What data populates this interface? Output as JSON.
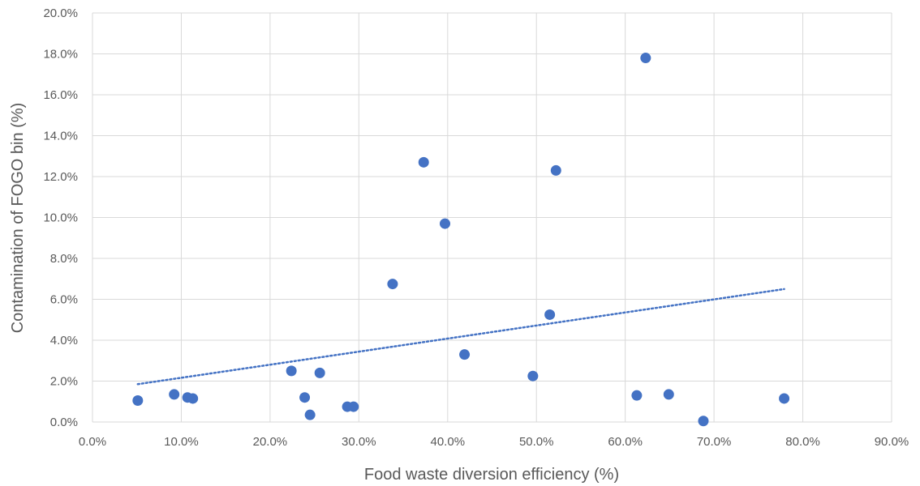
{
  "chart_data": {
    "type": "scatter",
    "title": "",
    "xlabel": "Food waste diversion efficiency (%)",
    "ylabel": "Contamination of FOGO bin (%)",
    "xlim": [
      0,
      90
    ],
    "ylim": [
      0,
      20
    ],
    "x_ticks": [
      0,
      10,
      20,
      30,
      40,
      50,
      60,
      70,
      80,
      90
    ],
    "y_ticks": [
      0,
      2,
      4,
      6,
      8,
      10,
      12,
      14,
      16,
      18,
      20
    ],
    "x_tick_labels": [
      "0.0%",
      "10.0%",
      "20.0%",
      "30.0%",
      "40.0%",
      "50.0%",
      "60.0%",
      "70.0%",
      "80.0%",
      "90.0%"
    ],
    "y_tick_labels": [
      "0.0%",
      "2.0%",
      "4.0%",
      "6.0%",
      "8.0%",
      "10.0%",
      "12.0%",
      "14.0%",
      "16.0%",
      "18.0%",
      "20.0%"
    ],
    "grid": true,
    "legend": "none",
    "series": [
      {
        "color": "#4472c4",
        "points": [
          {
            "x": 5.1,
            "y": 1.05
          },
          {
            "x": 9.2,
            "y": 1.35
          },
          {
            "x": 10.7,
            "y": 1.2
          },
          {
            "x": 11.3,
            "y": 1.15
          },
          {
            "x": 22.4,
            "y": 2.5
          },
          {
            "x": 23.9,
            "y": 1.2
          },
          {
            "x": 24.5,
            "y": 0.35
          },
          {
            "x": 25.6,
            "y": 2.4
          },
          {
            "x": 28.7,
            "y": 0.75
          },
          {
            "x": 29.4,
            "y": 0.75
          },
          {
            "x": 33.8,
            "y": 6.75
          },
          {
            "x": 37.3,
            "y": 12.7
          },
          {
            "x": 39.7,
            "y": 9.7
          },
          {
            "x": 41.9,
            "y": 3.3
          },
          {
            "x": 49.6,
            "y": 2.25
          },
          {
            "x": 51.5,
            "y": 5.25
          },
          {
            "x": 52.2,
            "y": 12.3
          },
          {
            "x": 61.3,
            "y": 1.3
          },
          {
            "x": 62.3,
            "y": 17.8
          },
          {
            "x": 64.9,
            "y": 1.35
          },
          {
            "x": 68.8,
            "y": 0.05
          },
          {
            "x": 77.9,
            "y": 1.15
          }
        ]
      }
    ],
    "trendline": {
      "type": "linear",
      "style": "dotted",
      "color": "#4472c4",
      "from": {
        "x": 5.1,
        "y": 1.85
      },
      "to": {
        "x": 77.9,
        "y": 6.5
      }
    }
  }
}
